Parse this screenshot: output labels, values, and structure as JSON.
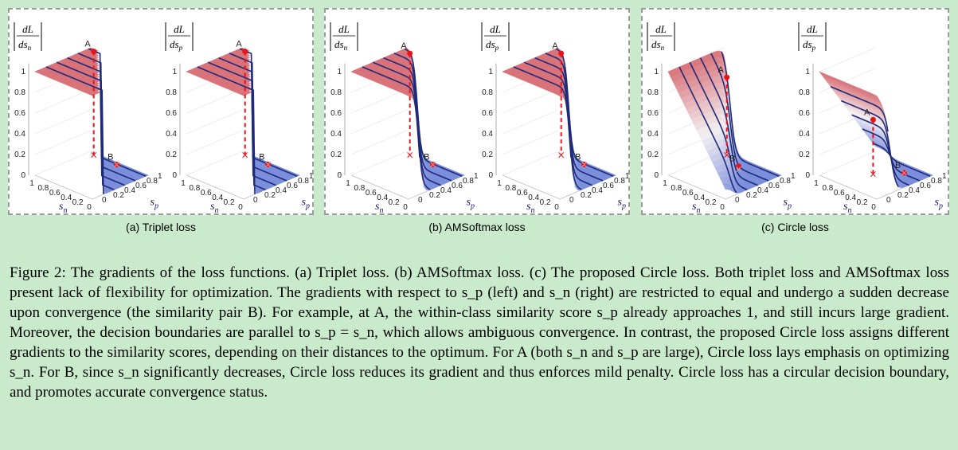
{
  "panels": [
    {
      "id": "triplet",
      "subcaption": "(a) Triplet loss"
    },
    {
      "id": "amsoftmax",
      "subcaption": "(b) AMSoftmax loss"
    },
    {
      "id": "circle",
      "subcaption": "(c) Circle loss"
    }
  ],
  "plot_labels": {
    "dl": "dL",
    "ds_n": "ds",
    "ds_p": "ds",
    "sub_n": "n",
    "sub_p": "p",
    "axis_s": "s",
    "point_a": "A",
    "point_b": "B",
    "z_ticks": [
      "0",
      "0.2",
      "0.4",
      "0.6",
      "0.8",
      "1"
    ],
    "sn_ticks": [
      "1",
      "0.8",
      "0.6",
      "0.4",
      "0.2",
      "0"
    ],
    "sp_ticks": [
      "0",
      "0.2",
      "0.4",
      "0.6",
      "0.8",
      "1"
    ]
  },
  "surface_colors": {
    "high": "#d9737a",
    "mid": "#f3f0f2",
    "low": "#7b8fdc",
    "boundary": "#1f2a7a",
    "marker": "#e8131b"
  },
  "caption": {
    "figure_label": "Figure 2:",
    "text": "The gradients of the loss functions. (a) Triplet loss. (b) AMSoftmax loss. (c) The proposed Circle loss. Both triplet loss and AMSoftmax loss present lack of flexibility for optimization. The gradients with respect to s_p (left) and s_n (right) are restricted to equal and undergo a sudden decrease upon convergence (the similarity pair B). For example, at A, the within-class similarity score s_p already approaches 1, and still incurs large gradient. Moreover, the decision boundaries are parallel to s_p = s_n, which allows ambiguous convergence. In contrast, the proposed Circle loss assigns different gradients to the similarity scores, depending on their distances to the optimum. For A (both s_n and s_p are large), Circle loss lays emphasis on optimizing s_n. For B, since s_n significantly decreases, Circle loss reduces its gradient and thus enforces mild penalty. Circle loss has a circular decision boundary, and promotes accurate convergence status."
  }
}
